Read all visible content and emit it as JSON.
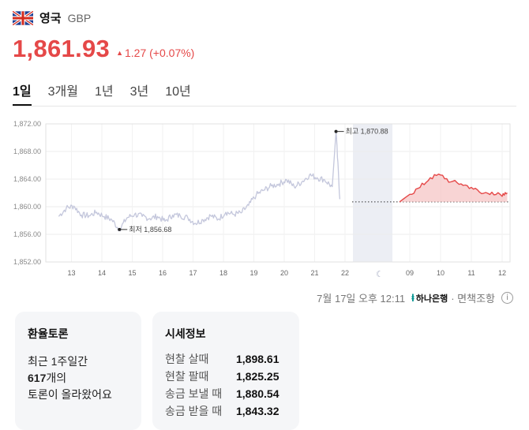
{
  "header": {
    "country": "영국",
    "code": "GBP"
  },
  "quote": {
    "price": "1,861.93",
    "change": "1.27 (+0.07%)",
    "direction": "up"
  },
  "tabs": [
    {
      "label": "1일",
      "active": true
    },
    {
      "label": "3개월",
      "active": false
    },
    {
      "label": "1년",
      "active": false
    },
    {
      "label": "3년",
      "active": false
    },
    {
      "label": "10년",
      "active": false
    }
  ],
  "chart_data": {
    "type": "line",
    "y_ticks": [
      "1,872.00",
      "1,868.00",
      "1,864.00",
      "1,860.00",
      "1,856.00",
      "1,852.00"
    ],
    "ylim": [
      1852,
      1872
    ],
    "x_ticks": [
      "13",
      "14",
      "15",
      "16",
      "17",
      "18",
      "19",
      "20",
      "21",
      "22",
      "09",
      "10",
      "11",
      "12"
    ],
    "grid": true,
    "colors": {
      "history": "#c4c7dc",
      "today": "#e54848",
      "night_band": "#eceef4"
    },
    "annotations": {
      "high": "최고 1,870.88",
      "low": "최저 1,856.68"
    },
    "reference_value": 1860.7,
    "series": [
      {
        "x": [
          "13 00:00",
          "13 06:00",
          "13 12:00",
          "13 18:00",
          "14 00:00",
          "14 06:00",
          "14 12:00",
          "14 18:00",
          "15 00:00",
          "15 06:00",
          "15 12:00",
          "15 18:00",
          "16 00:00",
          "16 06:00",
          "16 12:00",
          "16 18:00",
          "17 00:00",
          "17 06:00",
          "17 12:00",
          "17 18:00",
          "18 00:00",
          "18 06:00",
          "18 12:00",
          "18 18:00",
          "19 00:00",
          "19 06:00",
          "19 12:00",
          "19 18:00",
          "20 00:00",
          "20 06:00",
          "20 12:00",
          "20 18:00",
          "21 00:00",
          "21 06:00",
          "21 12:00",
          "21 18:00",
          "22 00:00",
          "22 03:00",
          "22 06:00"
        ],
        "values": [
          1858.6,
          1859.8,
          1860.1,
          1858.8,
          1858.7,
          1859.2,
          1858.6,
          1858.1,
          1856.7,
          1858.4,
          1858.9,
          1858.6,
          1858.3,
          1858.6,
          1857.9,
          1858.8,
          1858.7,
          1858.4,
          1857.6,
          1858.1,
          1858.7,
          1858.2,
          1859.2,
          1858.9,
          1859.1,
          1860.2,
          1861.7,
          1862.4,
          1863.0,
          1863.3,
          1863.9,
          1862.9,
          1863.6,
          1864.6,
          1864.2,
          1863.9,
          1862.9,
          1870.9,
          1861.1
        ]
      },
      {
        "name": "today",
        "x": [
          "08:40",
          "09:00",
          "09:20",
          "09:40",
          "10:00",
          "10:20",
          "10:40",
          "11:00",
          "11:20",
          "11:40",
          "12:00",
          "12:10"
        ],
        "values": [
          1860.7,
          1861.8,
          1862.8,
          1864.2,
          1864.6,
          1863.6,
          1863.3,
          1862.8,
          1861.9,
          1862.1,
          1861.5,
          1862.0
        ]
      }
    ]
  },
  "footer": {
    "timestamp": "7월 17일 오후 12:11",
    "bank": "하나은행",
    "note": "· 면책조항",
    "info": "i"
  },
  "cards": {
    "discussion": {
      "title": "환율토론",
      "line1": "최근 1주일간",
      "count": "617",
      "count_suffix": "개의",
      "line3": "토론이 올라왔어요"
    },
    "rates": {
      "title": "시세정보",
      "rows": [
        {
          "label": "현찰 살때",
          "value": "1,898.61"
        },
        {
          "label": "현찰 팔때",
          "value": "1,825.25"
        },
        {
          "label": "송금 보낼 때",
          "value": "1,880.54"
        },
        {
          "label": "송금 받을 때",
          "value": "1,843.32"
        }
      ]
    }
  }
}
